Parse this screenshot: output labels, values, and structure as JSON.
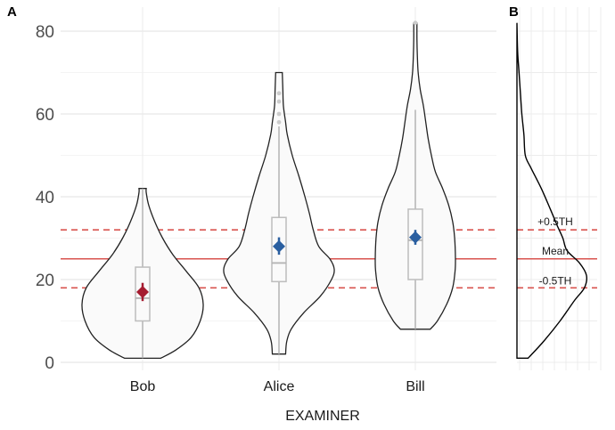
{
  "chart_data": [
    {
      "panel": "A",
      "type": "violin",
      "xlabel": "EXAMINER",
      "ylabel": "",
      "ylim": [
        0,
        82
      ],
      "yticks": [
        0,
        20,
        40,
        60,
        80
      ],
      "ytick_labels": [
        "0",
        "20",
        "40",
        "60",
        "80"
      ],
      "grid": true,
      "categories": [
        "Bob",
        "Alice",
        "Bill"
      ],
      "series": [
        {
          "name": "Bob",
          "color": "#a51c30",
          "min": 1,
          "max": 42,
          "q1": 10,
          "median": 15.5,
          "q3": 23,
          "whisker_low": 1,
          "whisker_high": 42,
          "mean": 17,
          "mean_ci": [
            14.8,
            19.2
          ],
          "outliers": [],
          "density": [
            [
              1,
              0.3
            ],
            [
              3,
              0.55
            ],
            [
              6,
              0.8
            ],
            [
              10,
              0.95
            ],
            [
              14,
              1.0
            ],
            [
              18,
              0.93
            ],
            [
              22,
              0.72
            ],
            [
              26,
              0.5
            ],
            [
              30,
              0.33
            ],
            [
              34,
              0.2
            ],
            [
              38,
              0.1
            ],
            [
              41,
              0.06
            ],
            [
              42,
              0.06
            ]
          ]
        },
        {
          "name": "Alice",
          "color": "#2a5fa0",
          "min": 2,
          "max": 70,
          "q1": 19.5,
          "median": 24,
          "q3": 35,
          "whisker_low": 2,
          "whisker_high": 57,
          "mean": 28,
          "mean_ci": [
            26,
            30.2
          ],
          "outliers": [
            58,
            60,
            63,
            65
          ],
          "density": [
            [
              2,
              0.12
            ],
            [
              5,
              0.14
            ],
            [
              8,
              0.22
            ],
            [
              12,
              0.45
            ],
            [
              16,
              0.75
            ],
            [
              20,
              0.95
            ],
            [
              22.5,
              1.0
            ],
            [
              25,
              0.92
            ],
            [
              28,
              0.72
            ],
            [
              32,
              0.62
            ],
            [
              36,
              0.55
            ],
            [
              40,
              0.47
            ],
            [
              45,
              0.36
            ],
            [
              50,
              0.24
            ],
            [
              55,
              0.15
            ],
            [
              58,
              0.12
            ],
            [
              62,
              0.08
            ],
            [
              66,
              0.07
            ],
            [
              70,
              0.06
            ]
          ]
        },
        {
          "name": "Bill",
          "color": "#2a5fa0",
          "min": 8,
          "max": 82,
          "q1": 20,
          "median": 29.5,
          "q3": 37,
          "whisker_low": 8,
          "whisker_high": 61,
          "mean": 30.2,
          "mean_ci": [
            28.4,
            32
          ],
          "outliers": [
            82
          ],
          "density": [
            [
              8,
              0.37
            ],
            [
              10,
              0.55
            ],
            [
              14,
              0.78
            ],
            [
              18,
              0.93
            ],
            [
              22,
              0.99
            ],
            [
              25,
              1.0
            ],
            [
              30,
              0.98
            ],
            [
              34,
              0.93
            ],
            [
              38,
              0.83
            ],
            [
              42,
              0.68
            ],
            [
              46,
              0.5
            ],
            [
              50,
              0.4
            ],
            [
              54,
              0.32
            ],
            [
              58,
              0.26
            ],
            [
              62,
              0.2
            ],
            [
              66,
              0.12
            ],
            [
              70,
              0.07
            ],
            [
              74,
              0.05
            ],
            [
              78,
              0.04
            ],
            [
              82,
              0.04
            ]
          ]
        }
      ],
      "reference_lines": [
        {
          "label": "+0.5TH",
          "value": 32,
          "style": "dashed",
          "color": "#d9534f"
        },
        {
          "label": "Mean",
          "value": 25,
          "style": "solid",
          "color": "#d9534f"
        },
        {
          "label": "-0.5TH",
          "value": 18,
          "style": "dashed",
          "color": "#d9534f"
        }
      ]
    },
    {
      "panel": "B",
      "type": "area",
      "title": "",
      "ylim": [
        0,
        82
      ],
      "density": [
        [
          1,
          0.16
        ],
        [
          5,
          0.38
        ],
        [
          10,
          0.62
        ],
        [
          15,
          0.83
        ],
        [
          18,
          0.97
        ],
        [
          21,
          1.0
        ],
        [
          24,
          0.9
        ],
        [
          27,
          0.72
        ],
        [
          30,
          0.66
        ],
        [
          33,
          0.58
        ],
        [
          37,
          0.48
        ],
        [
          42,
          0.35
        ],
        [
          47,
          0.2
        ],
        [
          50,
          0.12
        ],
        [
          55,
          0.1
        ],
        [
          60,
          0.07
        ],
        [
          65,
          0.05
        ],
        [
          70,
          0.03
        ],
        [
          75,
          0.01
        ],
        [
          82,
          0
        ]
      ],
      "annotations": [
        "+0.5TH",
        "Mean",
        "-0.5TH"
      ]
    }
  ],
  "labels": {
    "panel_a": "A",
    "panel_b": "B",
    "x_title": "EXAMINER"
  }
}
